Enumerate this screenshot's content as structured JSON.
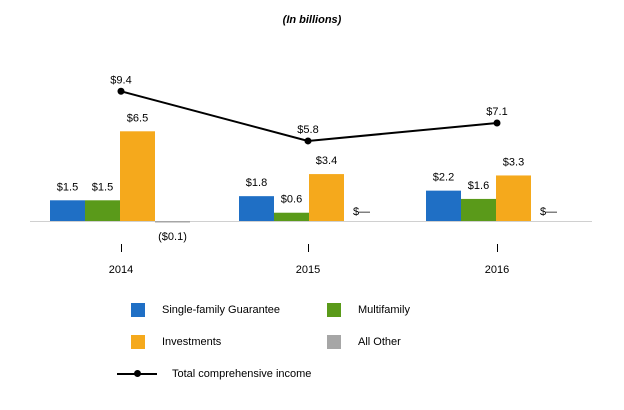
{
  "subtitle": "(In billions)",
  "chart_data": {
    "type": "bar",
    "subtitle": "(In billions)",
    "categories": [
      "2014",
      "2015",
      "2016"
    ],
    "series": [
      {
        "name": "Single-family Guarantee",
        "color": "#1f6fc5",
        "values": [
          1.5,
          1.8,
          2.2
        ],
        "labels": [
          "$1.5",
          "$1.8",
          "$2.2"
        ]
      },
      {
        "name": "Multifamily",
        "color": "#5a9a1a",
        "values": [
          1.5,
          0.6,
          1.6
        ],
        "labels": [
          "$1.5",
          "$0.6",
          "$1.6"
        ]
      },
      {
        "name": "Investments",
        "color": "#f5a91c",
        "values": [
          6.5,
          3.4,
          3.3
        ],
        "labels": [
          "$6.5",
          "$3.4",
          "$3.3"
        ]
      },
      {
        "name": "All Other",
        "color": "#a6a6a6",
        "values": [
          -0.1,
          0,
          0
        ],
        "labels": [
          "($0.1)",
          "$—",
          "$—"
        ]
      }
    ],
    "line": {
      "name": "Total comprehensive income",
      "color": "#000000",
      "values": [
        9.4,
        5.8,
        7.1
      ],
      "labels": [
        "$9.4",
        "$5.8",
        "$7.1"
      ]
    },
    "legend_position": "bottom",
    "grid": false
  }
}
